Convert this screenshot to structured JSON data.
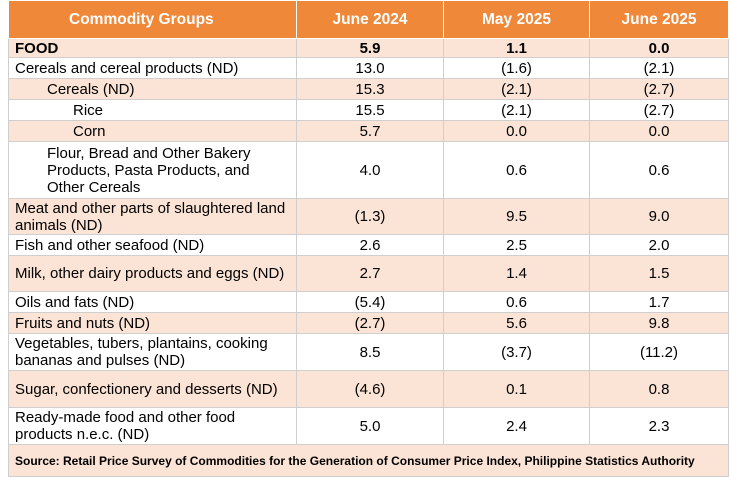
{
  "headers": [
    "Commodity Groups",
    "June 2024",
    "May 2025",
    "June 2025"
  ],
  "rows": [
    {
      "label": "FOOD",
      "values": [
        "5.9",
        "1.1",
        "0.0"
      ]
    },
    {
      "label": "Cereals and cereal products (ND)",
      "values": [
        "13.0",
        "(1.6)",
        "(2.1)"
      ]
    },
    {
      "label": "Cereals (ND)",
      "values": [
        "15.3",
        "(2.1)",
        "(2.7)"
      ]
    },
    {
      "label": "Rice",
      "values": [
        "15.5",
        "(2.1)",
        "(2.7)"
      ]
    },
    {
      "label": "Corn",
      "values": [
        "5.7",
        "0.0",
        "0.0"
      ]
    },
    {
      "label": "Flour, Bread and Other Bakery Products, Pasta Products, and Other Cereals",
      "values": [
        "4.0",
        "0.6",
        "0.6"
      ]
    },
    {
      "label": "Meat and other parts of slaughtered land animals (ND)",
      "values": [
        "(1.3)",
        "9.5",
        "9.0"
      ]
    },
    {
      "label": "Fish and other seafood (ND)",
      "values": [
        "2.6",
        "2.5",
        "2.0"
      ]
    },
    {
      "label": "Milk, other dairy products and eggs (ND)",
      "values": [
        "2.7",
        "1.4",
        "1.5"
      ]
    },
    {
      "label": "Oils and fats (ND)",
      "values": [
        "(5.4)",
        "0.6",
        "1.7"
      ]
    },
    {
      "label": "Fruits and nuts (ND)",
      "values": [
        "(2.7)",
        "5.6",
        "9.8"
      ]
    },
    {
      "label": "Vegetables, tubers, plantains, cooking bananas and pulses (ND)",
      "values": [
        "8.5",
        "(3.7)",
        "(11.2)"
      ]
    },
    {
      "label": "Sugar, confectionery and desserts (ND)",
      "values": [
        "(4.6)",
        "0.1",
        "0.8"
      ]
    },
    {
      "label": "Ready-made food and other food products n.e.c. (ND)",
      "values": [
        "5.0",
        "2.4",
        "2.3"
      ]
    }
  ],
  "source": "Source: Retail Price Survey of Commodities for the Generation of Consumer Price Index, Philippine Statistics Authority",
  "colors": {
    "header_bg": "#f0883a",
    "highlight_bg": "#fbe4d5"
  }
}
